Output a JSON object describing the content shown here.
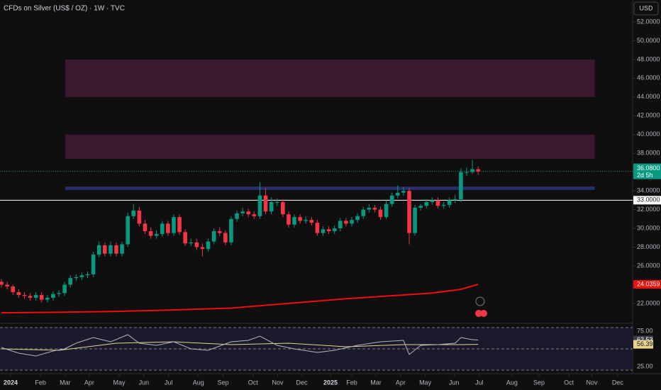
{
  "chart_data": {
    "type": "candlestick",
    "title": "CFDs on Silver (US$ / OZ) · 1W · TVC",
    "currency": "USD",
    "xlim": [
      -0.25,
      109.9
    ],
    "xticks": [
      {
        "value": 1.6,
        "label": "2024"
      },
      {
        "value": 6.8,
        "label": "Feb"
      },
      {
        "value": 11.1,
        "label": "Mar"
      },
      {
        "value": 15.3,
        "label": "Apr"
      },
      {
        "value": 20.5,
        "label": "May"
      },
      {
        "value": 24.8,
        "label": "Jun"
      },
      {
        "value": 29.1,
        "label": "Jul"
      },
      {
        "value": 34.3,
        "label": "Aug"
      },
      {
        "value": 38.6,
        "label": "Sep"
      },
      {
        "value": 43.8,
        "label": "Oct"
      },
      {
        "value": 48.1,
        "label": "Nov"
      },
      {
        "value": 52.3,
        "label": "Dec"
      },
      {
        "value": 57.3,
        "label": "2025"
      },
      {
        "value": 61.0,
        "label": "Feb"
      },
      {
        "value": 65.2,
        "label": "Mar"
      },
      {
        "value": 69.5,
        "label": "Apr"
      },
      {
        "value": 73.8,
        "label": "May"
      },
      {
        "value": 78.8,
        "label": "Jun"
      },
      {
        "value": 83.2,
        "label": "Jul"
      },
      {
        "value": 88.9,
        "label": "Aug"
      },
      {
        "value": 93.6,
        "label": "Sep"
      },
      {
        "value": 98.8,
        "label": "Oct"
      },
      {
        "value": 102.8,
        "label": "Nov"
      },
      {
        "value": 107.3,
        "label": "Dec"
      }
    ],
    "ylim": [
      19.95,
      54.34
    ],
    "yticks": [
      {
        "value": 52,
        "label": "52.0000"
      },
      {
        "value": 50,
        "label": "50.0000"
      },
      {
        "value": 48,
        "label": "48.0000"
      },
      {
        "value": 46,
        "label": "46.0000"
      },
      {
        "value": 44,
        "label": "44.0000"
      },
      {
        "value": 42,
        "label": "42.0000"
      },
      {
        "value": 40,
        "label": "40.0000"
      },
      {
        "value": 38,
        "label": "38.0000"
      },
      {
        "value": 34,
        "label": "34.0000"
      },
      {
        "value": 32,
        "label": "32.0000"
      },
      {
        "value": 30,
        "label": "30.0000"
      },
      {
        "value": 28,
        "label": "28.0000"
      },
      {
        "value": 26,
        "label": "26.0000"
      },
      {
        "value": 22,
        "label": "22.0000"
      }
    ],
    "up_color": "#089981",
    "down_color": "#f23645",
    "open": [
      24.3,
      24.0,
      23.8,
      23.2,
      22.9,
      22.8,
      22.6,
      22.9,
      22.4,
      22.6,
      23.0,
      23.1,
      24.0,
      24.7,
      24.8,
      25.0,
      25.1,
      27.2,
      28.2,
      27.3,
      28.2,
      27.3,
      28.3,
      31.3,
      31.9,
      30.5,
      29.7,
      29.2,
      29.4,
      30.5,
      29.5,
      31.2,
      29.6,
      28.4,
      28.5,
      28.0,
      27.8,
      28.6,
      29.7,
      29.5,
      28.5,
      31.0,
      31.6,
      31.8,
      31.5,
      31.3,
      33.5,
      31.8,
      32.8,
      32.8,
      31.5,
      30.4,
      31.2,
      30.8,
      30.9,
      30.6,
      29.5,
      29.9,
      29.7,
      30.0,
      30.8,
      30.5,
      30.9,
      31.3,
      32.0,
      32.2,
      32.0,
      31.2,
      32.6,
      33.5,
      33.8,
      34.0,
      29.5,
      32.2,
      32.4,
      32.8,
      33.0,
      32.4,
      32.5,
      33.0,
      33.1,
      36.0,
      36.0,
      36.3
    ],
    "high": [
      24.6,
      24.3,
      24.0,
      23.5,
      23.2,
      23.1,
      23.2,
      23.2,
      22.9,
      23.3,
      23.4,
      24.3,
      25.0,
      25.1,
      25.3,
      25.4,
      27.5,
      28.6,
      28.5,
      28.6,
      28.5,
      28.6,
      31.7,
      32.6,
      32.3,
      30.9,
      30.1,
      29.8,
      30.8,
      30.8,
      31.5,
      31.5,
      29.9,
      28.9,
      28.9,
      28.4,
      28.9,
      30.0,
      30.1,
      29.8,
      31.3,
      31.9,
      32.2,
      32.1,
      31.8,
      34.9,
      34.3,
      33.3,
      33.2,
      33.1,
      31.8,
      31.5,
      31.5,
      31.3,
      31.2,
      30.9,
      30.2,
      30.2,
      30.3,
      31.1,
      31.1,
      31.2,
      31.6,
      32.3,
      32.6,
      32.5,
      32.3,
      32.9,
      33.8,
      34.6,
      34.4,
      34.3,
      32.5,
      32.6,
      33.1,
      33.3,
      33.3,
      32.8,
      33.3,
      33.6,
      36.4,
      36.5,
      37.3,
      36.6
    ],
    "low": [
      23.7,
      23.5,
      22.9,
      22.6,
      22.5,
      22.3,
      22.3,
      22.1,
      22.1,
      22.3,
      22.7,
      22.8,
      23.7,
      24.4,
      24.5,
      24.7,
      24.8,
      26.9,
      27.0,
      27.0,
      27.0,
      27.0,
      28.0,
      31.0,
      30.2,
      29.4,
      28.9,
      28.9,
      29.1,
      29.2,
      29.2,
      29.3,
      28.1,
      28.1,
      27.7,
      27.0,
      27.5,
      28.3,
      29.2,
      28.2,
      28.2,
      30.7,
      31.3,
      31.2,
      31.0,
      31.0,
      31.5,
      31.5,
      32.4,
      31.2,
      30.1,
      30.1,
      30.5,
      30.5,
      30.3,
      29.2,
      29.2,
      29.4,
      29.4,
      29.7,
      30.2,
      30.2,
      30.6,
      31.0,
      31.7,
      31.7,
      30.9,
      31.0,
      32.3,
      33.2,
      33.5,
      28.3,
      29.2,
      31.9,
      32.1,
      32.5,
      32.1,
      32.1,
      32.2,
      32.7,
      32.8,
      35.6,
      35.8,
      35.7
    ],
    "close": [
      24.0,
      23.8,
      23.2,
      22.9,
      22.8,
      22.6,
      22.9,
      22.4,
      22.6,
      23.0,
      23.1,
      24.0,
      24.7,
      24.8,
      25.0,
      25.1,
      27.2,
      28.2,
      27.3,
      28.2,
      27.3,
      28.3,
      31.3,
      31.9,
      30.5,
      29.7,
      29.2,
      29.4,
      30.5,
      29.5,
      31.2,
      29.6,
      28.4,
      28.5,
      28.0,
      27.8,
      28.6,
      29.7,
      29.5,
      28.5,
      31.0,
      31.6,
      31.8,
      31.5,
      31.3,
      33.5,
      31.8,
      32.8,
      32.8,
      31.5,
      30.4,
      31.2,
      30.8,
      30.9,
      30.6,
      29.5,
      29.9,
      29.7,
      30.0,
      30.8,
      30.5,
      30.9,
      31.3,
      32.0,
      32.2,
      32.0,
      31.2,
      32.6,
      33.5,
      33.8,
      34.0,
      29.5,
      32.2,
      32.4,
      32.8,
      33.0,
      32.4,
      32.5,
      33.0,
      33.1,
      36.0,
      36.0,
      36.3,
      36.08
    ],
    "last_price": {
      "value": 36.08,
      "label": "36.0800",
      "countdown": "2d 5h",
      "color": "#089981"
    },
    "moving_average": {
      "x": [
        0,
        10,
        20,
        30,
        40,
        50,
        60,
        70,
        75,
        80,
        83
      ],
      "values": [
        21.0,
        21.05,
        21.15,
        21.3,
        21.5,
        22.0,
        22.5,
        22.9,
        23.1,
        23.5,
        24.0359
      ],
      "color": "#f20d0d",
      "label": "24.0359"
    },
    "zones": [
      {
        "low": 44,
        "high": 48,
        "x0": 11.1,
        "x1": 103.3,
        "color": "#3b1730"
      },
      {
        "low": 37.4,
        "high": 40,
        "x0": 11.1,
        "x1": 103.3,
        "color": "#3b1730"
      },
      {
        "low": 34.1,
        "high": 34.45,
        "x0": 11.1,
        "x1": 103.3,
        "color": "#28306b"
      }
    ],
    "level": {
      "value": 33,
      "label": "33.0000",
      "color": "#ffffff"
    },
    "rsi": {
      "ylim": [
        16,
        84
      ],
      "yticks": [
        {
          "value": 75,
          "label": "75.00"
        },
        {
          "value": 25,
          "label": "25.00"
        }
      ],
      "bands": [
        80,
        50,
        20
      ],
      "x": [
        0,
        3,
        6,
        9,
        11,
        13,
        16,
        19,
        22,
        24,
        27,
        30,
        33,
        36,
        40,
        43,
        45,
        48,
        51,
        55,
        58,
        62,
        66,
        70,
        71,
        73,
        76,
        79,
        80,
        82,
        83
      ],
      "values": [
        52,
        44,
        40,
        47,
        50,
        58,
        66,
        60,
        70,
        58,
        55,
        60,
        50,
        48,
        60,
        62,
        68,
        55,
        50,
        45,
        48,
        55,
        60,
        62,
        42,
        55,
        56,
        58,
        66,
        63,
        62.53
      ],
      "color": "#b2b5be",
      "label": "62.53",
      "ma_x": [
        0,
        10,
        20,
        30,
        40,
        50,
        60,
        70,
        80,
        83
      ],
      "ma_values": [
        50,
        48,
        58,
        60,
        56,
        58,
        53,
        56,
        56,
        56.39
      ],
      "ma_color": "#e6d48a",
      "ma_label": "56.39"
    }
  }
}
